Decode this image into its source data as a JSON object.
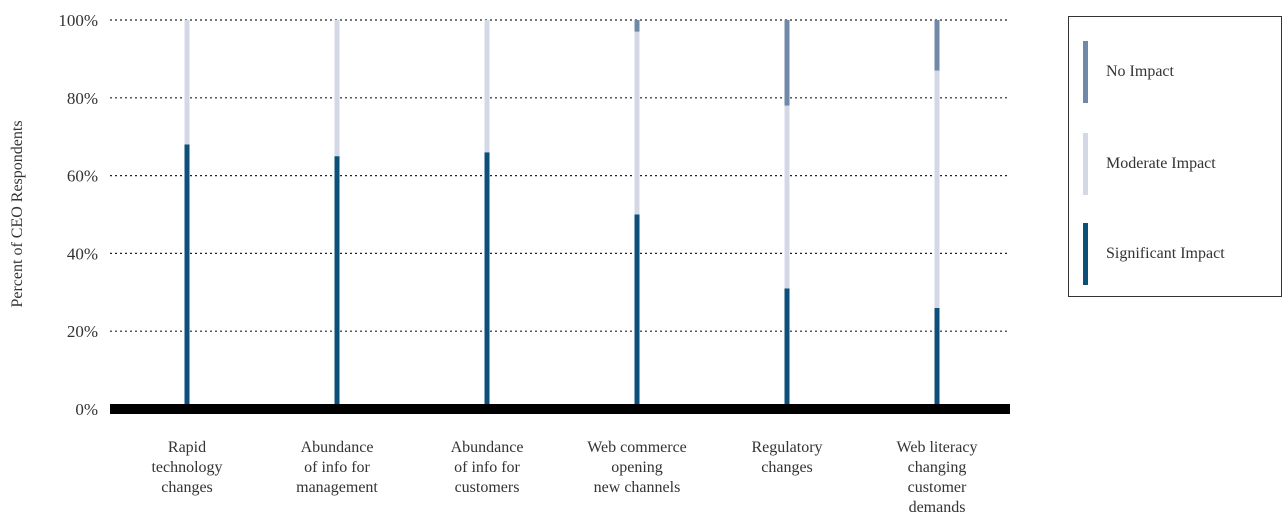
{
  "chart_data": {
    "type": "bar",
    "stacked": true,
    "ylabel": "Percent of CEO Respondents",
    "ylim": [
      0,
      100
    ],
    "yticks": [
      "0%",
      "20%",
      "40%",
      "60%",
      "80%",
      "100%"
    ],
    "grid": true,
    "legend_position": "right",
    "categories": [
      [
        "Rapid",
        "technology",
        "changes"
      ],
      [
        "Abundance",
        "of info for",
        "management"
      ],
      [
        "Abundance",
        "of info for",
        "customers"
      ],
      [
        "Web commerce",
        "opening",
        "new channels"
      ],
      [
        "Regulatory",
        "changes"
      ],
      [
        "Web literacy",
        "changing",
        "customer",
        "demands"
      ]
    ],
    "series": [
      {
        "name": "Significant Impact",
        "color": "#0b4f7a",
        "values": [
          68,
          65,
          66,
          50,
          31,
          26
        ]
      },
      {
        "name": "Moderate Impact",
        "color": "#d3d8e4",
        "values": [
          32,
          35,
          34,
          47,
          47,
          61
        ]
      },
      {
        "name": "No Impact",
        "color": "#7189a9",
        "values": [
          0,
          0,
          0,
          3,
          22,
          13
        ]
      }
    ]
  },
  "legend": {
    "items": [
      {
        "label": "No Impact",
        "color": "#7189a9"
      },
      {
        "label": "Moderate Impact",
        "color": "#d3d8e4"
      },
      {
        "label": "Significant Impact",
        "color": "#0b4f7a"
      }
    ]
  }
}
